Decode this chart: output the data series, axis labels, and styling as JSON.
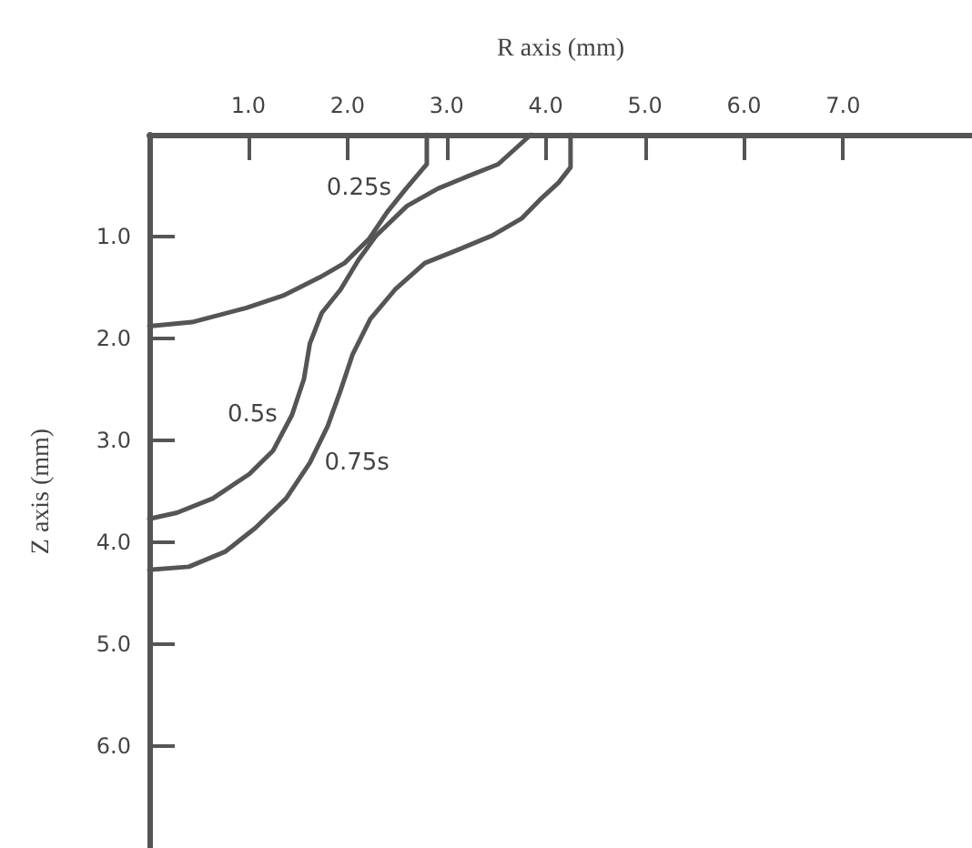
{
  "chart_data": {
    "type": "line",
    "xlabel": "R axis (mm)",
    "ylabel": "Z axis (mm)",
    "xlim": [
      0,
      8.3
    ],
    "xticks": [
      {
        "value": 1,
        "label": "1.0"
      },
      {
        "value": 2,
        "label": "2.0"
      },
      {
        "value": 3,
        "label": "3.0"
      },
      {
        "value": 4,
        "label": "4.0"
      },
      {
        "value": 5,
        "label": "5.0"
      },
      {
        "value": 6,
        "label": "6.0"
      },
      {
        "value": 7,
        "label": "7.0"
      }
    ],
    "ylim": [
      7,
      0
    ],
    "yticks": [
      {
        "value": 1,
        "label": "1.0"
      },
      {
        "value": 2,
        "label": "2.0"
      },
      {
        "value": 3,
        "label": "3.0"
      },
      {
        "value": 4,
        "label": "4.0"
      },
      {
        "value": 5,
        "label": "5.0"
      },
      {
        "value": 6,
        "label": "6.0"
      }
    ],
    "grid": false,
    "marker": "none",
    "line_style": "solid",
    "series": [
      {
        "name": "0.25s",
        "color": "#555555",
        "x": [
          2.8,
          2.8,
          2.59,
          2.4,
          2.22,
          1.97,
          1.72,
          1.35,
          0.98,
          0.43,
          0
        ],
        "values": [
          0,
          0.29,
          0.53,
          0.76,
          1.02,
          1.26,
          1.4,
          1.58,
          1.7,
          1.84,
          1.88
        ]
      },
      {
        "name": "0.5s",
        "color": "#555555",
        "x": [
          3.85,
          3.52,
          3.21,
          2.91,
          2.6,
          2.29,
          2.11,
          1.93,
          1.74,
          1.62,
          1.56,
          1.44,
          1.25,
          1.01,
          0.64,
          0.28,
          0
        ],
        "values": [
          0,
          0.29,
          0.41,
          0.53,
          0.7,
          0.99,
          1.23,
          1.52,
          1.75,
          2.05,
          2.4,
          2.75,
          3.1,
          3.33,
          3.57,
          3.71,
          3.77
        ]
      },
      {
        "name": "0.75s",
        "color": "#555555",
        "x": [
          4.25,
          4.25,
          4.13,
          3.94,
          3.76,
          3.46,
          3.09,
          2.78,
          2.48,
          2.23,
          2.05,
          1.93,
          1.8,
          1.62,
          1.38,
          1.07,
          0.77,
          0.4,
          0
        ],
        "values": [
          0,
          0.32,
          0.47,
          0.64,
          0.82,
          0.99,
          1.14,
          1.26,
          1.52,
          1.81,
          2.16,
          2.51,
          2.86,
          3.22,
          3.57,
          3.86,
          4.09,
          4.24,
          4.27
        ]
      }
    ]
  }
}
